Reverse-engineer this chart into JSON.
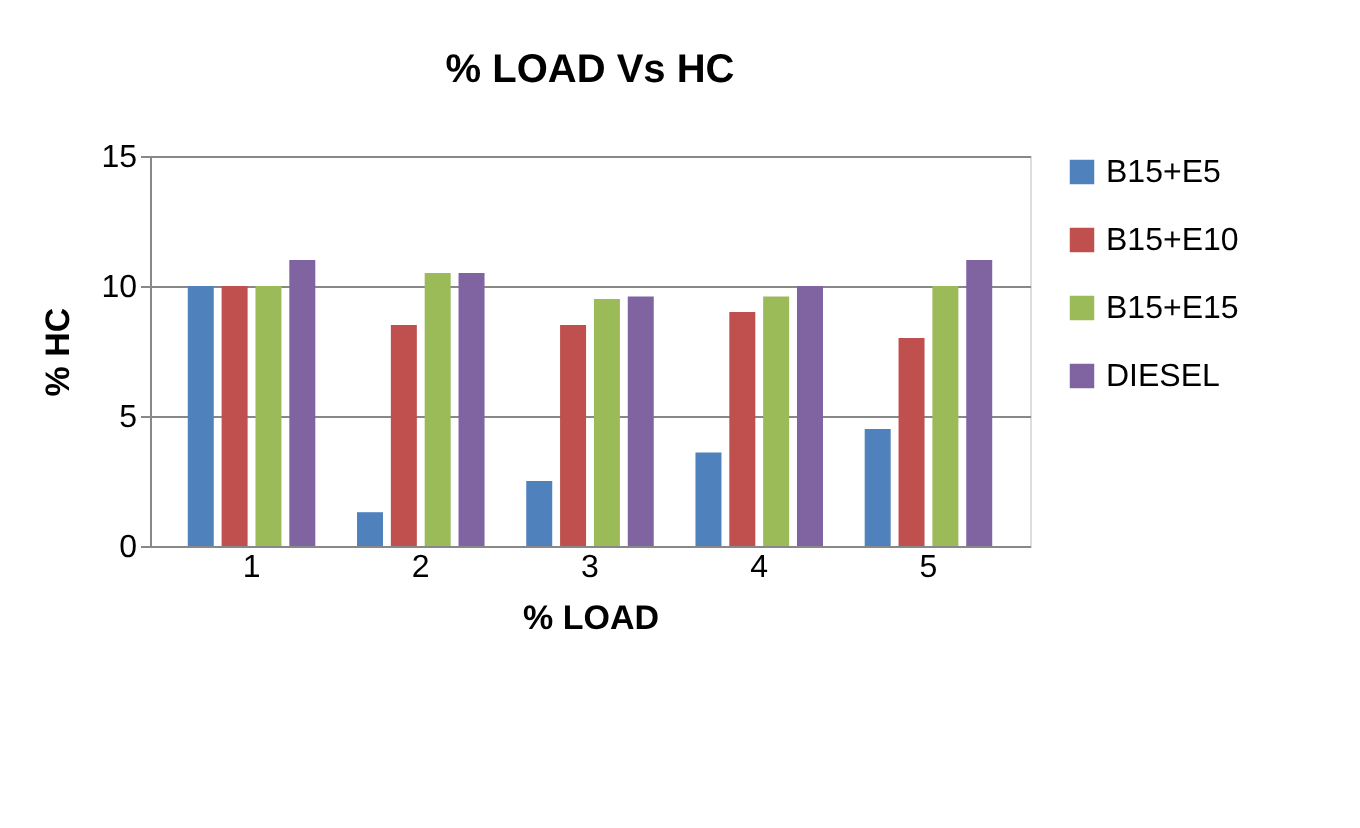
{
  "chart_data": {
    "type": "bar",
    "title": "% LOAD Vs HC",
    "xlabel": "% LOAD",
    "ylabel": "% HC",
    "categories": [
      "1",
      "2",
      "3",
      "4",
      "5"
    ],
    "series": [
      {
        "name": "B15+E5",
        "color": "#4f81bd",
        "values": [
          10,
          1.3,
          2.5,
          3.6,
          4.5
        ]
      },
      {
        "name": "B15+E10",
        "color": "#c0504d",
        "values": [
          10,
          8.5,
          8.5,
          9,
          8
        ]
      },
      {
        "name": "B15+E15",
        "color": "#9bbb59",
        "values": [
          10,
          10.5,
          9.5,
          9.6,
          10
        ]
      },
      {
        "name": "DIESEL",
        "color": "#8064a2",
        "values": [
          11,
          10.5,
          9.6,
          10,
          11
        ]
      }
    ],
    "ylim": [
      0,
      15
    ],
    "yticks": [
      0,
      5,
      10,
      15
    ],
    "grid": "y",
    "legend": "right"
  }
}
